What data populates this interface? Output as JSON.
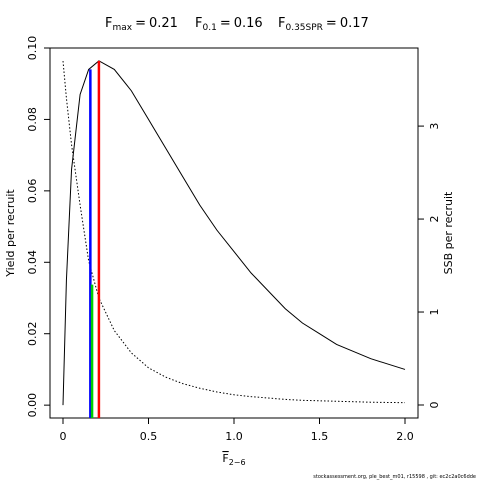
{
  "chart_data": {
    "type": "line",
    "title_items": [
      {
        "symbol": "F",
        "sub": "max",
        "relation": "=",
        "value": 0.21,
        "color": "#ff0000",
        "line_top": 0.0964,
        "line_axis": "y"
      },
      {
        "symbol": "F",
        "sub": "0.1",
        "relation": "=",
        "value": 0.16,
        "color": "#0000ff",
        "line_top": 0.094,
        "line_axis": "y"
      },
      {
        "symbol": "F",
        "sub": "0.35SPR",
        "relation": "=",
        "value": 0.17,
        "color": "#00cd00",
        "line_top": 1.295,
        "line_axis": "y2"
      }
    ],
    "x_label": {
      "symbol": "F",
      "sub": "2−6"
    },
    "y_label": "Yield per recruit",
    "y2_label": "SSB per recruit",
    "footer": "stockassessment.org, ple_best_m01, r15598 , git: ec2c2a0c6dde",
    "x": [
      0,
      0.02,
      0.05,
      0.1,
      0.15,
      0.21,
      0.3,
      0.4,
      0.5,
      0.6,
      0.7,
      0.8,
      0.9,
      1.0,
      1.1,
      1.2,
      1.3,
      1.4,
      1.5,
      1.6,
      1.7,
      1.8,
      1.9,
      2.0
    ],
    "series": [
      {
        "name": "Yield per recruit",
        "color": "#000000",
        "style": "solid",
        "axis": "y",
        "values": [
          0,
          0.035,
          0.066,
          0.087,
          0.094,
          0.0964,
          0.094,
          0.088,
          0.08,
          0.072,
          0.064,
          0.056,
          0.049,
          0.043,
          0.037,
          0.032,
          0.027,
          0.023,
          0.02,
          0.017,
          0.015,
          0.013,
          0.0115,
          0.01
        ]
      },
      {
        "name": "SSB per recruit",
        "color": "#000000",
        "style": "dotted",
        "axis": "y2",
        "values": [
          3.7,
          3.3,
          2.8,
          2.15,
          1.55,
          1.15,
          0.8,
          0.56,
          0.4,
          0.3,
          0.23,
          0.18,
          0.14,
          0.11,
          0.09,
          0.075,
          0.06,
          0.05,
          0.045,
          0.04,
          0.035,
          0.03,
          0.027,
          0.025
        ]
      }
    ],
    "xlim": [
      -0.076,
      2.076
    ],
    "ylim": [
      -0.0036,
      0.1
    ],
    "y2lim": [
      -0.14,
      3.84
    ],
    "xticks": [
      0,
      0.5,
      {
        "value": 1,
        "label": "1.0"
      },
      1.5,
      {
        "value": 2,
        "label": "2.0"
      }
    ],
    "yticks": [
      {
        "value": 0,
        "label": "0.00"
      },
      {
        "value": 0.02,
        "label": "0.02"
      },
      {
        "value": 0.04,
        "label": "0.04"
      },
      {
        "value": 0.06,
        "label": "0.06"
      },
      {
        "value": 0.08,
        "label": "0.08"
      },
      {
        "value": 0.1,
        "label": "0.10"
      }
    ],
    "y2ticks": [
      0,
      1,
      2,
      3
    ]
  }
}
